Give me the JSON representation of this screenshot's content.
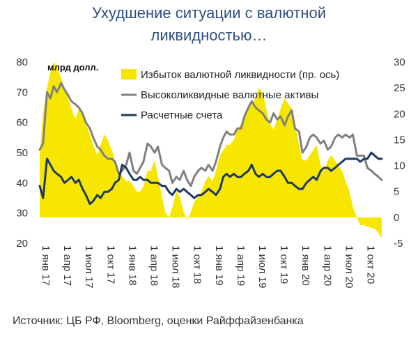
{
  "title_line1": "Ухудшение ситуации с валютной",
  "title_line2": "ликвидностью…",
  "source": "Источник: ЦБ РФ, Bloomberg, оценки Райффайзенбанка",
  "colors": {
    "area": "#f7e600",
    "gray": "#808080",
    "navy": "#1f3a5f",
    "title": "#2f4f80"
  },
  "chart_data": {
    "type": "line",
    "unit_label": "млрд долл.",
    "y_left": {
      "min": 20,
      "max": 80,
      "ticks": [
        20,
        30,
        40,
        50,
        60,
        70,
        80
      ]
    },
    "y_right": {
      "min": -5,
      "max": 30,
      "ticks": [
        -5,
        0,
        5,
        10,
        15,
        20,
        25,
        30
      ]
    },
    "x_ticks": [
      "1 янв 17",
      "1 апр 17",
      "1 июл 17",
      "1 окт 17",
      "1 янв 18",
      "1 апр 18",
      "1 июл 18",
      "1 окт 18",
      "1 янв 19",
      "1 апр 19",
      "1 июл 19",
      "1 окт 19",
      "1 янв 20",
      "1 апр 20",
      "1 июл 20",
      "1 окт 20"
    ],
    "x_start": "2017-01-01",
    "x_end": "2020-12-15",
    "legend": {
      "position": "top-right",
      "entries": [
        "Избыток валютной ликвидности (пр. ось)",
        "Высоколиквидные валютные активы",
        "Расчетные счета"
      ]
    },
    "series": [
      {
        "name": "Избыток валютной ликвидности (пр. ось)",
        "axis": "right",
        "type": "area",
        "dates": [
          "2017-01-01",
          "2017-01-15",
          "2017-02-01",
          "2017-02-15",
          "2017-03-01",
          "2017-03-15",
          "2017-04-01",
          "2017-04-15",
          "2017-05-01",
          "2017-05-15",
          "2017-06-01",
          "2017-06-15",
          "2017-07-01",
          "2017-07-15",
          "2017-08-01",
          "2017-08-15",
          "2017-09-01",
          "2017-09-15",
          "2017-10-01",
          "2017-10-15",
          "2017-11-01",
          "2017-11-15",
          "2017-12-01",
          "2017-12-15",
          "2018-01-01",
          "2018-01-15",
          "2018-02-01",
          "2018-02-15",
          "2018-03-01",
          "2018-03-15",
          "2018-04-01",
          "2018-04-15",
          "2018-05-01",
          "2018-05-15",
          "2018-06-01",
          "2018-06-15",
          "2018-07-01",
          "2018-07-15",
          "2018-08-01",
          "2018-08-15",
          "2018-09-01",
          "2018-09-15",
          "2018-10-01",
          "2018-10-15",
          "2018-11-01",
          "2018-11-15",
          "2018-12-01",
          "2018-12-15",
          "2019-01-01",
          "2019-01-15",
          "2019-02-01",
          "2019-02-15",
          "2019-03-01",
          "2019-03-15",
          "2019-04-01",
          "2019-04-15",
          "2019-05-01",
          "2019-05-15",
          "2019-06-01",
          "2019-06-15",
          "2019-07-01",
          "2019-07-15",
          "2019-08-01",
          "2019-08-15",
          "2019-09-01",
          "2019-09-15",
          "2019-10-01",
          "2019-10-15",
          "2019-11-01",
          "2019-11-15",
          "2019-12-01",
          "2019-12-15",
          "2020-01-01",
          "2020-01-15",
          "2020-02-01",
          "2020-02-15",
          "2020-03-01",
          "2020-03-15",
          "2020-04-01",
          "2020-04-15",
          "2020-05-01",
          "2020-05-15",
          "2020-06-01",
          "2020-06-15",
          "2020-07-01",
          "2020-07-15",
          "2020-08-01",
          "2020-08-15",
          "2020-09-01",
          "2020-09-15",
          "2020-10-01",
          "2020-10-15",
          "2020-11-01",
          "2020-11-15",
          "2020-12-01",
          "2020-12-15"
        ],
        "values": [
          12,
          20,
          25,
          28,
          30,
          29,
          27,
          25,
          23,
          21,
          19,
          21,
          20,
          18,
          16,
          14,
          12,
          14,
          16,
          15,
          13,
          11,
          9,
          8,
          7,
          7,
          6,
          5,
          5,
          6,
          9,
          9,
          11,
          8,
          4,
          1,
          0,
          2,
          5,
          4,
          1,
          -0.5,
          1,
          3,
          4,
          5,
          7,
          8,
          7,
          9,
          12,
          13,
          14,
          14,
          15,
          17,
          18,
          19,
          21,
          22,
          23,
          25,
          24,
          21,
          18,
          17,
          19,
          21,
          23,
          22,
          21,
          18,
          14,
          11,
          11,
          12,
          13,
          14,
          10,
          9,
          11,
          12,
          11,
          10,
          9,
          7,
          5,
          2,
          0,
          -1.5,
          -1.5,
          -1.8,
          -2,
          -2.2,
          -3,
          -4
        ]
      },
      {
        "name": "Высоколиквидные валютные активы",
        "axis": "left",
        "dates": [
          "2017-01-01",
          "2017-01-15",
          "2017-02-01",
          "2017-02-15",
          "2017-03-01",
          "2017-03-15",
          "2017-04-01",
          "2017-04-15",
          "2017-05-01",
          "2017-05-15",
          "2017-06-01",
          "2017-06-15",
          "2017-07-01",
          "2017-07-15",
          "2017-08-01",
          "2017-08-15",
          "2017-09-01",
          "2017-09-15",
          "2017-10-01",
          "2017-10-15",
          "2017-11-01",
          "2017-11-15",
          "2017-12-01",
          "2017-12-15",
          "2018-01-01",
          "2018-01-15",
          "2018-02-01",
          "2018-02-15",
          "2018-03-01",
          "2018-03-15",
          "2018-04-01",
          "2018-04-15",
          "2018-05-01",
          "2018-05-15",
          "2018-06-01",
          "2018-06-15",
          "2018-07-01",
          "2018-07-15",
          "2018-08-01",
          "2018-08-15",
          "2018-09-01",
          "2018-09-15",
          "2018-10-01",
          "2018-10-15",
          "2018-11-01",
          "2018-11-15",
          "2018-12-01",
          "2018-12-15",
          "2019-01-01",
          "2019-01-15",
          "2019-02-01",
          "2019-02-15",
          "2019-03-01",
          "2019-03-15",
          "2019-04-01",
          "2019-04-15",
          "2019-05-01",
          "2019-05-15",
          "2019-06-01",
          "2019-06-15",
          "2019-07-01",
          "2019-07-15",
          "2019-08-01",
          "2019-08-15",
          "2019-09-01",
          "2019-09-15",
          "2019-10-01",
          "2019-10-15",
          "2019-11-01",
          "2019-11-15",
          "2019-12-01",
          "2019-12-15",
          "2020-01-01",
          "2020-01-15",
          "2020-02-01",
          "2020-02-15",
          "2020-03-01",
          "2020-03-15",
          "2020-04-01",
          "2020-04-15",
          "2020-05-01",
          "2020-05-15",
          "2020-06-01",
          "2020-06-15",
          "2020-07-01",
          "2020-07-15",
          "2020-08-01",
          "2020-08-15",
          "2020-09-01",
          "2020-09-15",
          "2020-10-01",
          "2020-10-15",
          "2020-11-01",
          "2020-11-15",
          "2020-12-01",
          "2020-12-15"
        ],
        "values": [
          51,
          53,
          70,
          68,
          72,
          70,
          73,
          71,
          69,
          67,
          66,
          65,
          63,
          60,
          58,
          55,
          52,
          51,
          49,
          48,
          48,
          47,
          43,
          44,
          46,
          50,
          44,
          43,
          45,
          47,
          53,
          52,
          50,
          52,
          46,
          45,
          44,
          40,
          42,
          41,
          44,
          41,
          39,
          42,
          44,
          45,
          44,
          46,
          44,
          47,
          52,
          55,
          57,
          56,
          56,
          58,
          58,
          62,
          65,
          67,
          65,
          64,
          63,
          61,
          60,
          63,
          61,
          62,
          59,
          62,
          64,
          58,
          57,
          50,
          52,
          55,
          56,
          55,
          53,
          54,
          51,
          52,
          55,
          56,
          55,
          56,
          55,
          56,
          49,
          49,
          49,
          45,
          44,
          43,
          42,
          41
        ]
      },
      {
        "name": "Расчетные счета",
        "axis": "left",
        "dates": [
          "2017-01-01",
          "2017-01-15",
          "2017-02-01",
          "2017-02-15",
          "2017-03-01",
          "2017-03-15",
          "2017-04-01",
          "2017-04-15",
          "2017-05-01",
          "2017-05-15",
          "2017-06-01",
          "2017-06-15",
          "2017-07-01",
          "2017-07-15",
          "2017-08-01",
          "2017-08-15",
          "2017-09-01",
          "2017-09-15",
          "2017-10-01",
          "2017-10-15",
          "2017-11-01",
          "2017-11-15",
          "2017-12-01",
          "2017-12-15",
          "2018-01-01",
          "2018-01-15",
          "2018-02-01",
          "2018-02-15",
          "2018-03-01",
          "2018-03-15",
          "2018-04-01",
          "2018-04-15",
          "2018-05-01",
          "2018-05-15",
          "2018-06-01",
          "2018-06-15",
          "2018-07-01",
          "2018-07-15",
          "2018-08-01",
          "2018-08-15",
          "2018-09-01",
          "2018-09-15",
          "2018-10-01",
          "2018-10-15",
          "2018-11-01",
          "2018-11-15",
          "2018-12-01",
          "2018-12-15",
          "2019-01-01",
          "2019-01-15",
          "2019-02-01",
          "2019-02-15",
          "2019-03-01",
          "2019-03-15",
          "2019-04-01",
          "2019-04-15",
          "2019-05-01",
          "2019-05-15",
          "2019-06-01",
          "2019-06-15",
          "2019-07-01",
          "2019-07-15",
          "2019-08-01",
          "2019-08-15",
          "2019-09-01",
          "2019-09-15",
          "2019-10-01",
          "2019-10-15",
          "2019-11-01",
          "2019-11-15",
          "2019-12-01",
          "2019-12-15",
          "2020-01-01",
          "2020-01-15",
          "2020-02-01",
          "2020-02-15",
          "2020-03-01",
          "2020-03-15",
          "2020-04-01",
          "2020-04-15",
          "2020-05-01",
          "2020-05-15",
          "2020-06-01",
          "2020-06-15",
          "2020-07-01",
          "2020-07-15",
          "2020-08-01",
          "2020-08-15",
          "2020-09-01",
          "2020-09-15",
          "2020-10-01",
          "2020-10-15",
          "2020-11-01",
          "2020-11-15",
          "2020-12-01",
          "2020-12-15"
        ],
        "values": [
          39,
          35,
          48,
          46,
          44,
          43,
          42,
          40,
          41,
          42,
          40,
          41,
          38,
          36,
          33,
          34,
          36,
          35,
          37,
          37,
          38,
          40,
          41,
          46,
          45,
          43,
          41,
          41,
          42,
          41,
          41,
          40,
          40,
          40,
          39,
          39,
          37,
          36,
          38,
          37,
          38,
          37,
          36,
          35,
          36,
          36,
          37,
          38,
          37,
          36,
          38,
          42,
          43,
          42,
          43,
          42,
          42,
          43,
          44,
          46,
          43,
          42,
          43,
          42,
          42,
          43,
          44,
          44,
          42,
          40,
          40,
          39,
          38,
          38,
          40,
          41,
          42,
          41,
          44,
          45,
          45,
          44,
          45,
          46,
          47,
          48,
          48,
          48,
          48,
          47,
          48,
          48,
          50,
          49,
          48,
          48
        ]
      }
    ]
  }
}
